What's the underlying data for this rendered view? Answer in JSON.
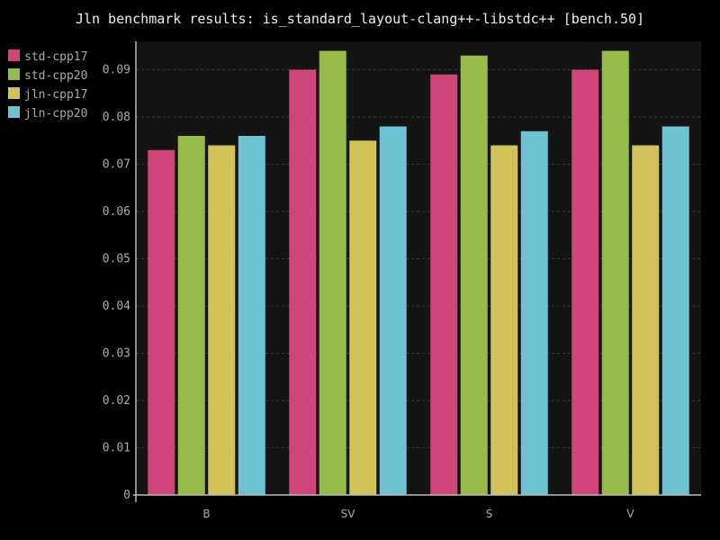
{
  "chart_data": {
    "type": "bar",
    "title": "Jln benchmark results: is_standard_layout-clang++-libstdc++ [bench.50]",
    "xlabel": "",
    "ylabel": "",
    "categories": [
      "B",
      "SV",
      "S",
      "V"
    ],
    "ylim": [
      0,
      0.096
    ],
    "yticks": [
      "0",
      "0.01",
      "0.02",
      "0.03",
      "0.04",
      "0.05",
      "0.06",
      "0.07",
      "0.08",
      "0.09"
    ],
    "grid": true,
    "legend": "top-left",
    "series": [
      {
        "name": "std-cpp17",
        "color": "#d0467a",
        "values": [
          0.073,
          0.09,
          0.089,
          0.09
        ]
      },
      {
        "name": "std-cpp20",
        "color": "#96bb4a",
        "values": [
          0.076,
          0.094,
          0.093,
          0.094
        ]
      },
      {
        "name": "jln-cpp17",
        "color": "#d1c35a",
        "values": [
          0.074,
          0.075,
          0.074,
          0.074
        ]
      },
      {
        "name": "jln-cpp20",
        "color": "#6fc2d2",
        "values": [
          0.076,
          0.078,
          0.077,
          0.078
        ]
      }
    ]
  }
}
